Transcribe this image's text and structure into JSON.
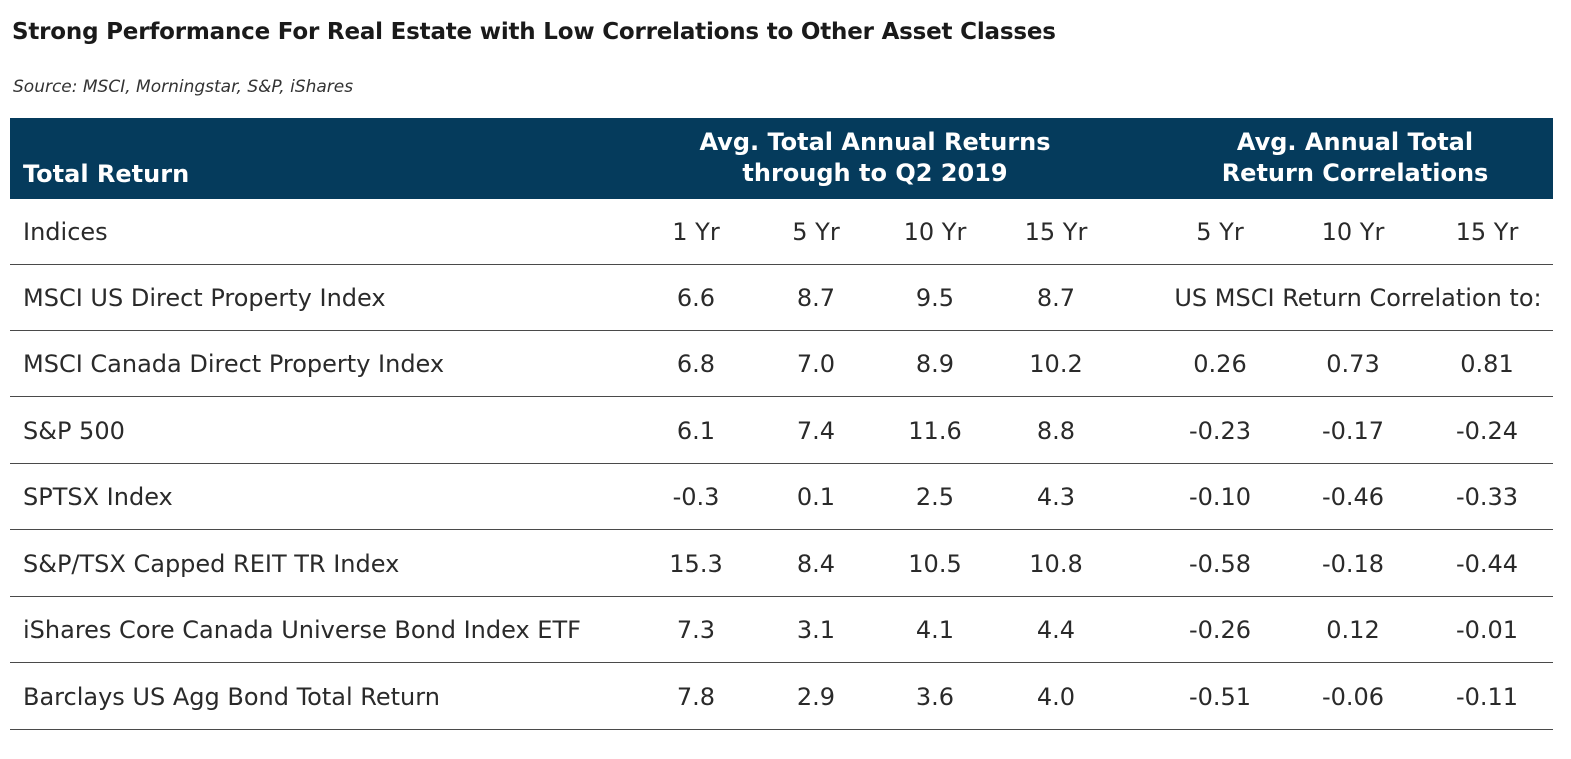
{
  "title": "Strong Performance For Real Estate with Low Correlations to Other Asset Classes",
  "source": "Source: MSCI, Morningstar, S&P, iShares",
  "colors": {
    "header_bg": "#053b5c",
    "header_text": "#ffffff",
    "row_divider": "#4a4a4a"
  },
  "chart_data": {
    "type": "table",
    "header": {
      "first_col": "Total Return",
      "group_returns": [
        "Avg. Total Annual Returns",
        "through to Q2 2019"
      ],
      "group_correlations": [
        "Avg. Annual Total",
        "Return Correlations"
      ]
    },
    "subheader": {
      "label": "Indices",
      "returns": [
        "1 Yr",
        "5 Yr",
        "10 Yr",
        "15 Yr"
      ],
      "correlations": [
        "5 Yr",
        "10 Yr",
        "15 Yr"
      ]
    },
    "rows": [
      {
        "label": "MSCI US Direct Property Index",
        "returns": [
          "6.6",
          "8.7",
          "9.5",
          "8.7"
        ],
        "correlation_note": "US MSCI Return Correlation to:"
      },
      {
        "label": "MSCI Canada Direct Property Index",
        "returns": [
          "6.8",
          "7.0",
          "8.9",
          "10.2"
        ],
        "correlations": [
          "0.26",
          "0.73",
          "0.81"
        ]
      },
      {
        "label": "S&P 500",
        "returns": [
          "6.1",
          "7.4",
          "11.6",
          "8.8"
        ],
        "correlations": [
          "-0.23",
          "-0.17",
          "-0.24"
        ]
      },
      {
        "label": "SPTSX Index",
        "returns": [
          "-0.3",
          "0.1",
          "2.5",
          "4.3"
        ],
        "correlations": [
          "-0.10",
          "-0.46",
          "-0.33"
        ]
      },
      {
        "label": "S&P/TSX Capped REIT TR Index",
        "returns": [
          "15.3",
          "8.4",
          "10.5",
          "10.8"
        ],
        "correlations": [
          "-0.58",
          "-0.18",
          "-0.44"
        ]
      },
      {
        "label": "iShares Core Canada Universe Bond Index ETF",
        "returns": [
          "7.3",
          "3.1",
          "4.1",
          "4.4"
        ],
        "correlations": [
          "-0.26",
          "0.12",
          "-0.01"
        ]
      },
      {
        "label": "Barclays US Agg Bond Total Return",
        "returns": [
          "7.8",
          "2.9",
          "3.6",
          "4.0"
        ],
        "correlations": [
          "-0.51",
          "-0.06",
          "-0.11"
        ]
      }
    ]
  }
}
